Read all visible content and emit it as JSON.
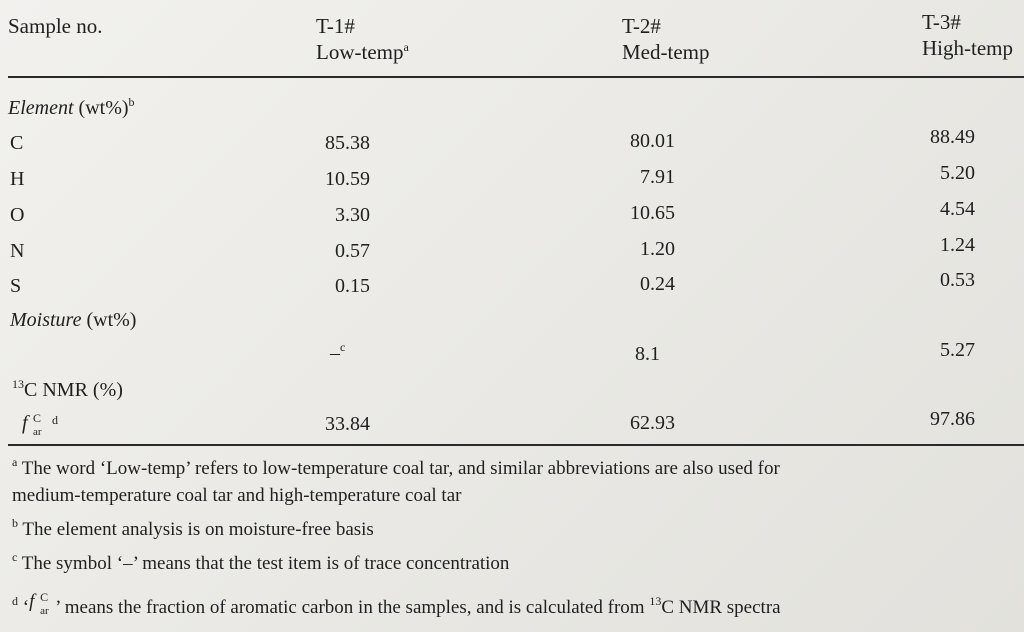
{
  "header": {
    "sample_label": "Sample no.",
    "columns": [
      {
        "id": "T-1#",
        "name": "Low-temp",
        "mark": "a"
      },
      {
        "id": "T-2#",
        "name": "Med-temp",
        "mark": ""
      },
      {
        "id": "T-3#",
        "name": "High-temp",
        "mark": ""
      }
    ]
  },
  "sections": {
    "element": {
      "label": "Element",
      "unit": "(wt%)",
      "mark": "b"
    },
    "moisture": {
      "label": "Moisture",
      "unit": "(wt%)"
    },
    "nmr": {
      "sup": "13",
      "label": "C NMR (%)"
    }
  },
  "rows": [
    {
      "label": "C",
      "values": [
        "85.38",
        "80.01",
        "88.49"
      ]
    },
    {
      "label": "H",
      "values": [
        "10.59",
        "7.91",
        "5.20"
      ]
    },
    {
      "label": "O",
      "values": [
        "3.30",
        "10.65",
        "4.54"
      ]
    },
    {
      "label": "N",
      "values": [
        "0.57",
        "1.20",
        "1.24"
      ]
    },
    {
      "label": "S",
      "values": [
        "0.15",
        "0.24",
        "0.53"
      ]
    }
  ],
  "moisture_values": {
    "t1": "–",
    "t1_mark": "c",
    "t2": "8.1",
    "t3": "5.27"
  },
  "far_row": {
    "symbol_f": "f",
    "symbol_sup": "C",
    "symbol_sub": "ar",
    "mark": "d",
    "values": [
      "33.84",
      "62.93",
      "97.86"
    ]
  },
  "footnotes": {
    "a_mark": "a",
    "a_line1": "The word ‘Low-temp’ refers to low-temperature coal tar, and similar abbreviations are also used for",
    "a_line2": "medium-temperature coal tar and high-temperature coal tar",
    "b_mark": "b",
    "b_text": "The element analysis is on moisture-free basis",
    "c_mark": "c",
    "c_text": "The symbol ‘–’ means that the test item is of trace concentration",
    "d_mark": "d",
    "d_text_pre": "‘",
    "d_text_mid": "’ means the fraction of aromatic carbon in the samples, and is calculated from",
    "d_sup": "13",
    "d_text_post": "C NMR spectra"
  }
}
